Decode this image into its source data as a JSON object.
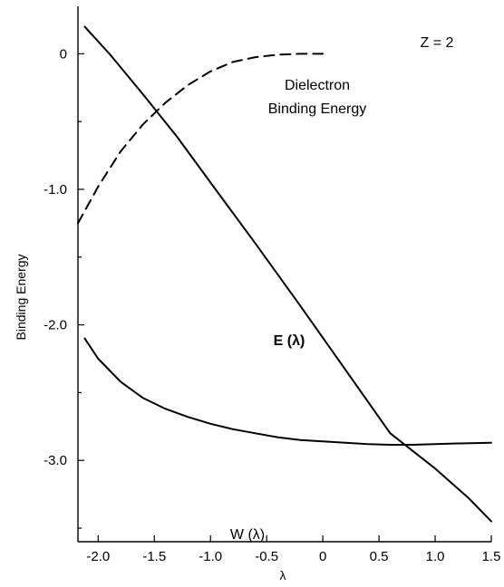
{
  "chart_data": {
    "type": "line",
    "title": "",
    "xlabel": "λ",
    "ylabel": "Binding Energy",
    "xlim": [
      -2.18,
      1.5
    ],
    "ylim": [
      -3.6,
      0.35
    ],
    "xticks": [
      -2.0,
      -1.5,
      -1.0,
      -0.5,
      0.0,
      0.5,
      1.0,
      1.5
    ],
    "xtick_labels": [
      "-2.0",
      "-1.5",
      "-1.0",
      "-0.5",
      "0",
      "0.5",
      "1.0",
      "1.5"
    ],
    "yticks": [
      0,
      -1.0,
      -2.0,
      -3.0
    ],
    "ytick_labels": [
      "0",
      "-1.0",
      "-2.0",
      "-3.0"
    ],
    "minor_yticks": [
      -0.5,
      -1.5,
      -2.5,
      -3.5
    ],
    "grid": false,
    "annotations": {
      "z_label": "Z = 2",
      "dielectron_line1": "Dielectron",
      "dielectron_line2": "Binding Energy",
      "e_label": "E (λ)",
      "w_label": "W (λ)"
    },
    "series": [
      {
        "style": "solid",
        "x": [
          -2.12,
          -1.9,
          -1.6,
          -1.3,
          -1.0,
          -0.6,
          -0.2,
          0.2,
          0.6,
          1.0,
          1.3,
          1.5
        ],
        "y": [
          0.2,
          0.0,
          -0.3,
          -0.61,
          -0.95,
          -1.4,
          -1.86,
          -2.33,
          -2.8,
          -3.06,
          -3.28,
          -3.45
        ]
      },
      {
        "style": "solid",
        "x": [
          -2.12,
          -2.0,
          -1.8,
          -1.6,
          -1.4,
          -1.2,
          -1.0,
          -0.8,
          -0.6,
          -0.4,
          -0.2,
          0.0,
          0.2,
          0.4,
          0.6,
          0.8,
          1.0,
          1.2,
          1.5
        ],
        "y": [
          -2.1,
          -2.25,
          -2.42,
          -2.54,
          -2.62,
          -2.68,
          -2.73,
          -2.77,
          -2.8,
          -2.83,
          -2.85,
          -2.86,
          -2.87,
          -2.88,
          -2.885,
          -2.885,
          -2.88,
          -2.875,
          -2.87
        ]
      },
      {
        "style": "dashed",
        "x": [
          -2.18,
          -2.0,
          -1.8,
          -1.6,
          -1.4,
          -1.2,
          -1.0,
          -0.8,
          -0.6,
          -0.4,
          -0.2,
          0.0
        ],
        "y": [
          -1.25,
          -0.98,
          -0.72,
          -0.52,
          -0.36,
          -0.23,
          -0.13,
          -0.06,
          -0.025,
          -0.007,
          0.0,
          0.0
        ]
      }
    ]
  }
}
